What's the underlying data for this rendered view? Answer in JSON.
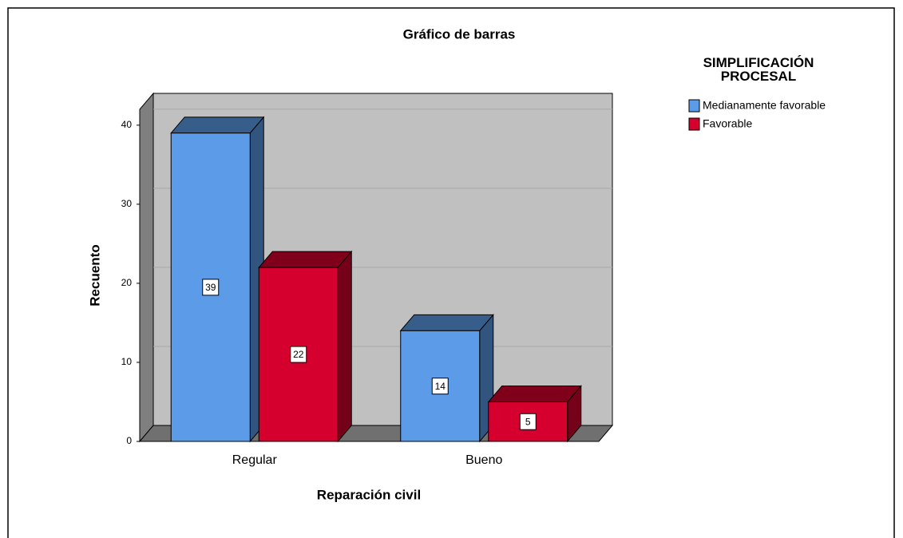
{
  "chart_data": {
    "type": "bar",
    "title": "Gráfico de barras",
    "x_label": "Reparación civil",
    "y_label": "Recuento",
    "legend_title": "SIMPLIFICACIÓN PROCESAL",
    "categories": [
      "Regular",
      "Bueno"
    ],
    "series": [
      {
        "name": "Medianamente favorable",
        "color": "#5b9be8",
        "values": [
          39,
          14
        ]
      },
      {
        "name": "Favorable",
        "color": "#d5002e",
        "values": [
          22,
          5
        ]
      }
    ],
    "ylim": [
      0,
      42
    ],
    "yticks": [
      0,
      10,
      20,
      30,
      40
    ],
    "grid": true,
    "legend": "right"
  }
}
